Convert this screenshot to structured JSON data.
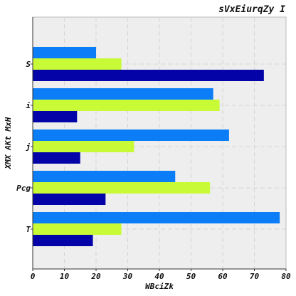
{
  "chart_data": {
    "type": "bar",
    "orientation": "horizontal",
    "title": "sVxEiurqZy I",
    "xlabel": "WBciZk",
    "ylabel": "XMX AKt  MxH",
    "categories": [
      "S",
      "i",
      "j",
      "Pcg",
      "T"
    ],
    "series": [
      {
        "color": "#0a7df7",
        "values": [
          20,
          57,
          62,
          45,
          78
        ]
      },
      {
        "color": "#c8fb36",
        "values": [
          28,
          59,
          32,
          56,
          28
        ]
      },
      {
        "color": "#0303a8",
        "values": [
          73,
          14,
          15,
          23,
          19
        ]
      }
    ],
    "xlim": [
      0,
      80
    ],
    "xticks": [
      "0",
      "10",
      "20",
      "30",
      "40",
      "50",
      "60",
      "70",
      "80"
    ],
    "grid": true,
    "legend": "none",
    "background": "#eeeeee"
  }
}
